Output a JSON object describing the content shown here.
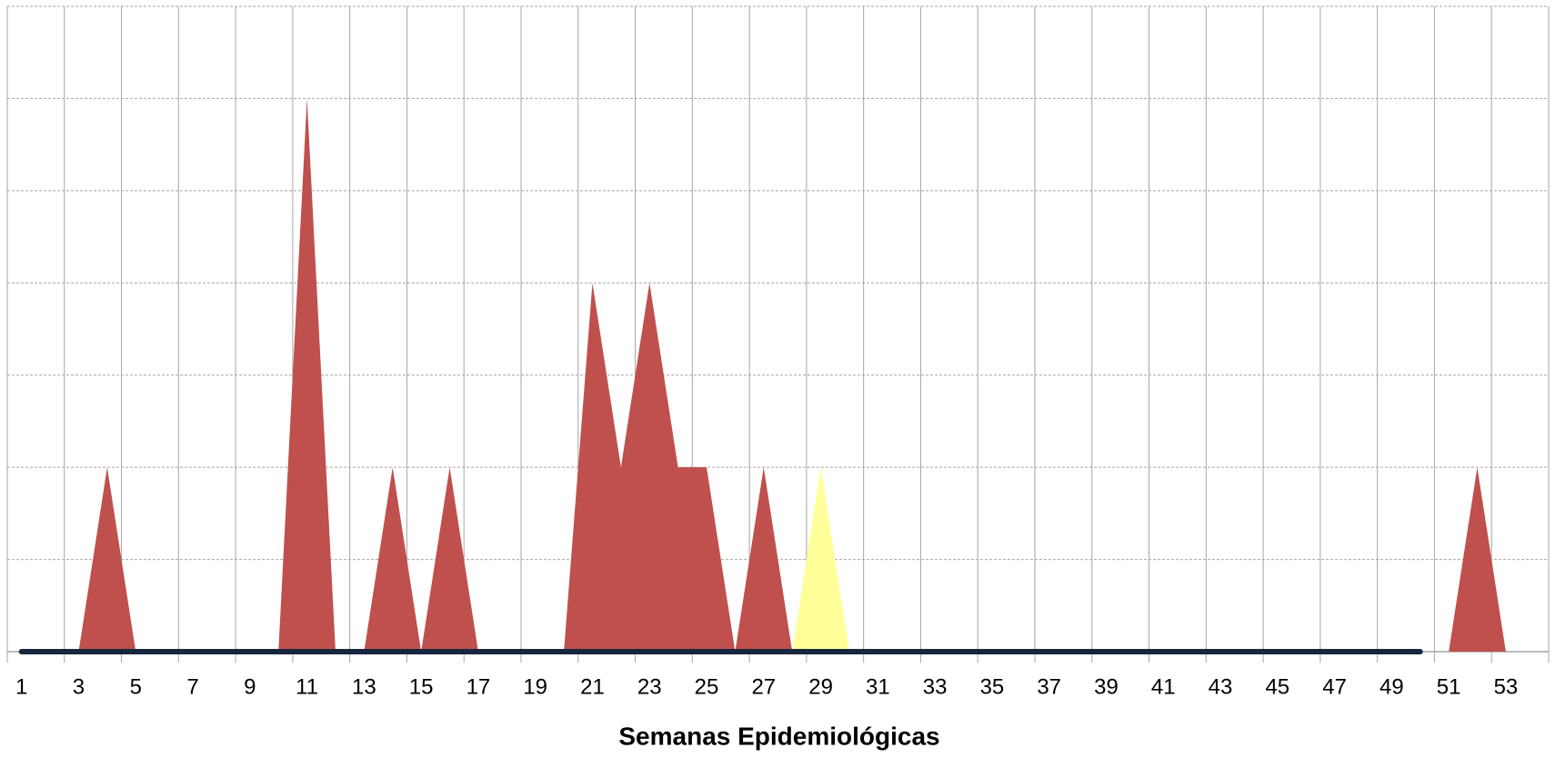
{
  "chart_data": {
    "type": "area",
    "x_label": "Semanas Epidemiológicas",
    "categories": [
      "1",
      null,
      "3",
      null,
      "5",
      null,
      "7",
      null,
      "9",
      null,
      "11",
      null,
      "13",
      null,
      "15",
      null,
      "17",
      null,
      "19",
      null,
      "21",
      null,
      "23",
      null,
      "25",
      null,
      "27",
      null,
      "29",
      null,
      "31",
      null,
      "33",
      null,
      "35",
      null,
      "37",
      null,
      "39",
      null,
      "41",
      null,
      "43",
      null,
      "45",
      null,
      "47",
      null,
      "49",
      null,
      "51",
      null,
      "53",
      null
    ],
    "series": [
      {
        "color": "#c0504d",
        "values": [
          0,
          0,
          0,
          2,
          0,
          0,
          0,
          0,
          0,
          0,
          6,
          0,
          0,
          2,
          0,
          2,
          0,
          0,
          0,
          0,
          4,
          2,
          4,
          2,
          2,
          0,
          2,
          0,
          0,
          0,
          0,
          0,
          0,
          0,
          0,
          0,
          0,
          0,
          0,
          0,
          0,
          0,
          0,
          0,
          0,
          0,
          0,
          0,
          0,
          0,
          0,
          2,
          0,
          0
        ]
      },
      {
        "color": "#ffff99",
        "values": [
          0,
          0,
          0,
          0,
          0,
          0,
          0,
          0,
          0,
          0,
          0,
          0,
          0,
          0,
          0,
          0,
          0,
          0,
          0,
          0,
          0,
          0,
          0,
          0,
          0,
          0,
          0,
          0,
          2,
          0,
          0,
          0,
          0,
          0,
          0,
          0,
          0,
          0,
          0,
          0,
          0,
          0,
          0,
          0,
          0,
          0,
          0,
          0,
          0,
          0,
          0,
          0,
          0,
          0
        ]
      },
      {
        "type": "line",
        "color": "#17263f",
        "values": [
          0,
          0,
          0,
          0,
          0,
          0,
          0,
          0,
          0,
          0,
          0,
          0,
          0,
          0,
          0,
          0,
          0,
          0,
          0,
          0,
          0,
          0,
          0,
          0,
          0,
          0,
          0,
          0,
          0,
          0,
          0,
          0,
          0,
          0,
          0,
          0,
          0,
          0,
          0,
          0,
          0,
          0,
          0,
          0,
          0,
          0,
          0,
          0,
          0,
          0,
          null,
          null,
          null,
          null
        ]
      }
    ],
    "ylim": [
      0,
      7
    ],
    "yticks": [
      0,
      1,
      2,
      3,
      4,
      5,
      6,
      7
    ],
    "grid": true
  }
}
